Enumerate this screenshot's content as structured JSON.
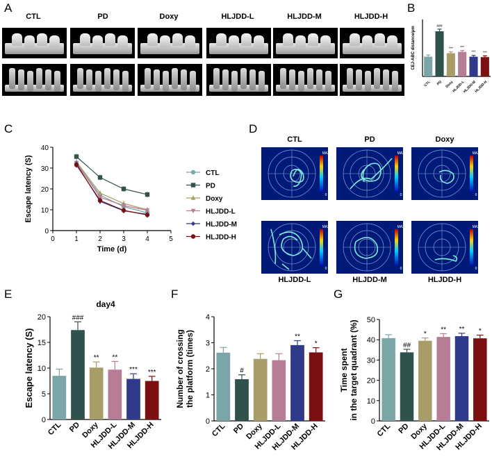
{
  "panel_labels": {
    "A": "A",
    "B": "B",
    "C": "C",
    "D": "D",
    "E": "E",
    "F": "F",
    "G": "G"
  },
  "panel_a": {
    "groups": [
      "CTL",
      "PD",
      "Doxy",
      "HLJDD-L",
      "HLJDD-M",
      "HLJDD-H"
    ]
  },
  "panel_d": {
    "top": [
      "CTL",
      "PD",
      "Doxy"
    ],
    "bottom": [
      "HLJDD-L",
      "HLJDD-M",
      "HLJDD-H"
    ],
    "scale_max": "MAX",
    "scale_min": "0"
  },
  "colors": {
    "CTL": "#7aa6a8",
    "PD": "#2f524c",
    "Doxy": "#a89c68",
    "HLJDD-L": "#b57d96",
    "HLJDD-M": "#2f3a8a",
    "HLJDD-H": "#7a1010"
  },
  "chart_data": [
    {
      "id": "B",
      "type": "bar",
      "ylabel": "CEJ-ABC distance/μm",
      "categories": [
        "CTL",
        "PD",
        "Doxy",
        "HLJDD-L",
        "HLJDD-M",
        "HLJDD-H"
      ],
      "values": [
        0.45,
        1.03,
        0.53,
        0.56,
        0.45,
        0.44
      ],
      "errors": [
        0.04,
        0.05,
        0.03,
        0.03,
        0.03,
        0.03
      ],
      "annotations": [
        "",
        "###",
        "***",
        "***",
        "***",
        "***"
      ],
      "ylim": [
        0,
        1.3
      ]
    },
    {
      "id": "C",
      "type": "line",
      "xlabel": "Time (d)",
      "ylabel": "Escape latency (S)",
      "xlim": [
        0,
        5
      ],
      "ylim": [
        0,
        40
      ],
      "xticks": [
        "0",
        "1",
        "2",
        "3",
        "4",
        "5"
      ],
      "yticks": [
        "0",
        "10",
        "20",
        "30",
        "40"
      ],
      "x": [
        1,
        2,
        3,
        4
      ],
      "series": [
        {
          "name": "CTL",
          "values": [
            32.5,
            17.0,
            11.5,
            8.5
          ],
          "marker": "circle"
        },
        {
          "name": "PD",
          "values": [
            35.5,
            25.5,
            20.0,
            17.3
          ],
          "marker": "square"
        },
        {
          "name": "Doxy",
          "values": [
            33.0,
            18.0,
            13.0,
            10.0
          ],
          "marker": "triangle-up"
        },
        {
          "name": "HLJDD-L",
          "values": [
            32.5,
            16.0,
            12.0,
            9.7
          ],
          "marker": "triangle-down"
        },
        {
          "name": "HLJDD-M",
          "values": [
            32.0,
            14.0,
            9.5,
            7.8
          ],
          "marker": "diamond"
        },
        {
          "name": "HLJDD-H",
          "values": [
            31.5,
            14.5,
            9.7,
            7.5
          ],
          "marker": "circle"
        }
      ]
    },
    {
      "id": "E",
      "type": "bar",
      "title": "day4",
      "ylabel": "Escape latency (S)",
      "categories": [
        "CTL",
        "PD",
        "Doxy",
        "HLJDD-L",
        "HLJDD-M",
        "HLJDD-H"
      ],
      "values": [
        8.5,
        17.4,
        10.1,
        9.7,
        7.9,
        7.5
      ],
      "errors": [
        1.3,
        1.6,
        1.1,
        1.6,
        1.0,
        0.9
      ],
      "annotations": [
        "",
        "###",
        "**",
        "**",
        "***",
        "***"
      ],
      "ylim": [
        0,
        20
      ],
      "yticks": [
        "0",
        "5",
        "10",
        "15",
        "20"
      ]
    },
    {
      "id": "F",
      "type": "bar",
      "ylabel": "Number of crossing\nthe platform (times)",
      "categories": [
        "CTL",
        "PD",
        "Doxy",
        "HLJDD-L",
        "HLJDD-M",
        "HLJDD-H"
      ],
      "values": [
        2.62,
        1.6,
        2.38,
        2.33,
        2.91,
        2.63
      ],
      "errors": [
        0.2,
        0.17,
        0.2,
        0.25,
        0.17,
        0.18
      ],
      "annotations": [
        "",
        "#",
        "",
        "",
        "**",
        "*"
      ],
      "ylim": [
        0,
        4
      ],
      "yticks": [
        "0",
        "1",
        "2",
        "3",
        "4"
      ]
    },
    {
      "id": "G",
      "type": "bar",
      "ylabel": "Time spent\nin the target quadrant (%)",
      "categories": [
        "CTL",
        "PD",
        "Doxy",
        "HLJDD-L",
        "HLJDD-M",
        "HLJDD-H"
      ],
      "values": [
        40.8,
        33.8,
        39.5,
        41.4,
        41.8,
        40.7
      ],
      "errors": [
        1.7,
        1.5,
        1.4,
        1.6,
        1.4,
        1.6
      ],
      "annotations": [
        "",
        "##",
        "*",
        "**",
        "**",
        "*"
      ],
      "ylim": [
        0,
        50
      ],
      "yticks": [
        "0",
        "10",
        "20",
        "30",
        "40",
        "50"
      ]
    }
  ]
}
